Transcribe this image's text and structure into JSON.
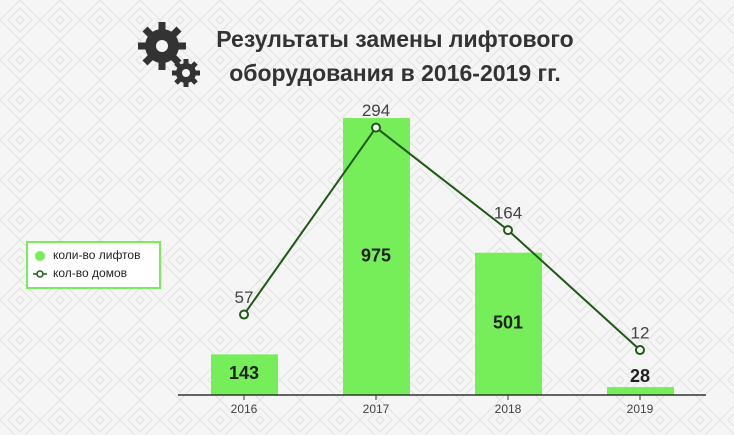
{
  "chart_data": {
    "type": "bar-line",
    "title": [
      "Результаты замены лифтового",
      "оборудования в 2016-2019 гг."
    ],
    "categories": [
      "2016",
      "2017",
      "2018",
      "2019"
    ],
    "series": [
      {
        "name": "коли-во лифтов",
        "type": "bar",
        "color": "#76ee59",
        "values": [
          143,
          975,
          501,
          28
        ]
      },
      {
        "name": "кол-во домов",
        "type": "line",
        "axis": "y2",
        "color": "#1e5a14",
        "values": [
          57,
          294,
          164,
          12
        ]
      }
    ],
    "ylim": [
      0,
      1000
    ],
    "y2lim": [
      -45,
      315
    ],
    "legend": "left"
  }
}
